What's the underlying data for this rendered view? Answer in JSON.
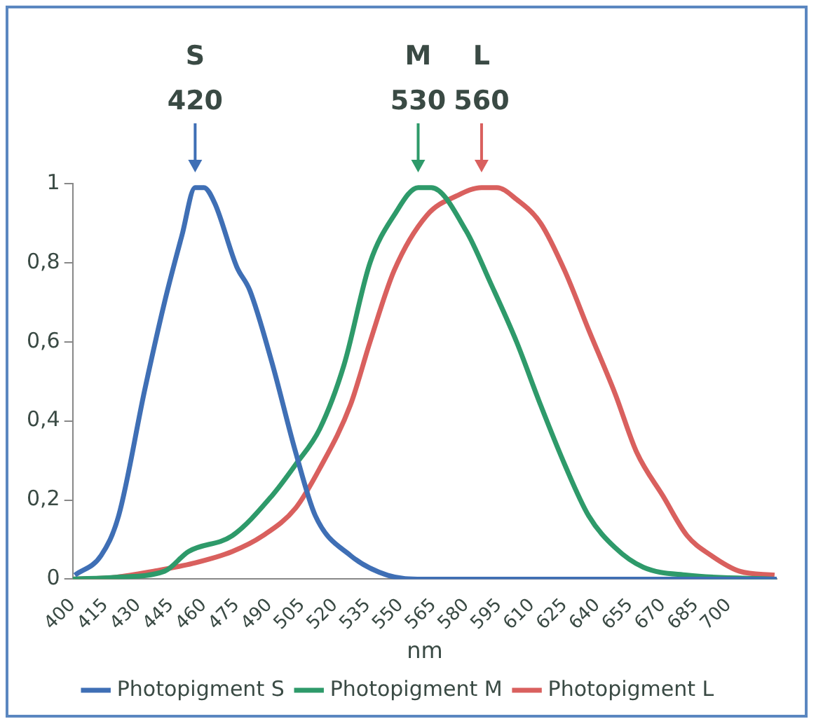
{
  "chart_data": {
    "type": "line",
    "xlabel": "nm",
    "xlim": [
      400,
      722
    ],
    "xticks": [
      400,
      415,
      430,
      445,
      460,
      475,
      490,
      505,
      520,
      535,
      550,
      565,
      580,
      595,
      610,
      625,
      640,
      655,
      670,
      685,
      700
    ],
    "ylim": [
      0,
      1
    ],
    "yticks": [
      0,
      {
        "value": 0.2,
        "label": "0,2"
      },
      {
        "value": 0.4,
        "label": "0,4"
      },
      {
        "value": 0.6,
        "label": "0,6"
      },
      {
        "value": 0.8,
        "label": "0,8"
      },
      1
    ],
    "grid": false,
    "legend": "bottom",
    "marker": "none",
    "line_style": "solid",
    "annotations": [
      {
        "text": "S\n420",
        "x": 456,
        "y": 1
      },
      {
        "text": "M\n530",
        "x": 558,
        "y": 1
      },
      {
        "text": "L\n560",
        "x": 587,
        "y": 1
      }
    ],
    "series": [
      {
        "name": "Photopigment S",
        "color": "#3f6fb5",
        "x": [
          401,
          413,
          421,
          433,
          442,
          450,
          456,
          460,
          465,
          475,
          481,
          491,
          502,
          511,
          527,
          544,
          560,
          600,
          650,
          722
        ],
        "values": [
          0.01,
          0.06,
          0.16,
          0.48,
          0.7,
          0.87,
          0.99,
          0.99,
          0.95,
          0.79,
          0.73,
          0.55,
          0.32,
          0.16,
          0.06,
          0.01,
          0,
          0,
          0,
          0
        ]
      },
      {
        "name": "Photopigment M",
        "color": "#2e9a6a",
        "x": [
          400,
          420,
          442,
          453,
          473,
          491,
          502,
          513,
          524,
          536,
          547,
          558,
          564,
          580,
          591,
          603,
          614,
          625,
          636,
          648,
          661,
          681,
          722
        ],
        "values": [
          0,
          0.005,
          0.02,
          0.07,
          0.11,
          0.21,
          0.29,
          0.38,
          0.54,
          0.8,
          0.92,
          0.99,
          0.99,
          0.88,
          0.75,
          0.6,
          0.44,
          0.29,
          0.16,
          0.08,
          0.03,
          0.01,
          0
        ]
      },
      {
        "name": "Photopigment L",
        "color": "#d9605e",
        "x": [
          400,
          420,
          437,
          455,
          473,
          487,
          502,
          513,
          527,
          536,
          547,
          562,
          576,
          587,
          594,
          603,
          614,
          625,
          636,
          648,
          658,
          670,
          681,
          692,
          705,
          721
        ],
        "values": [
          0,
          0.005,
          0.02,
          0.04,
          0.07,
          0.11,
          0.18,
          0.28,
          0.44,
          0.6,
          0.78,
          0.92,
          0.97,
          0.99,
          0.99,
          0.96,
          0.9,
          0.78,
          0.63,
          0.47,
          0.32,
          0.21,
          0.11,
          0.06,
          0.02,
          0.01
        ]
      }
    ]
  }
}
